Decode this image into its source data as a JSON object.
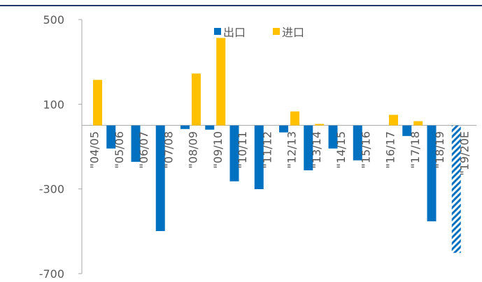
{
  "chart_data": {
    "type": "bar",
    "categories": [
      "\"04/05",
      "\"05/06",
      "\"06/07",
      "\"07/08",
      "\"08/09",
      "\"09/10",
      "\"10/11",
      "\"11/12",
      "\"12/13",
      "\"13/14",
      "\"14/15",
      "\"15/16",
      "\"16/17",
      "\"17/18",
      "\"18/19",
      "\"19/20E"
    ],
    "series": [
      {
        "name": "出口",
        "color": "#0070c0",
        "hatched_indices": [
          15
        ],
        "values": [
          0,
          -109,
          -172,
          -499,
          -17,
          -20,
          -264,
          -301,
          -33,
          -212,
          -109,
          -165,
          0,
          -50,
          -453,
          -602
        ]
      },
      {
        "name": "进口",
        "color": "#ffc000",
        "values": [
          215,
          0,
          0,
          0,
          245,
          413,
          0,
          0,
          66,
          7,
          0,
          0,
          50,
          20,
          0,
          0
        ]
      }
    ],
    "ylim": [
      -700,
      500
    ],
    "yticks": [
      -700,
      -300,
      100,
      500
    ],
    "legend": "top"
  }
}
